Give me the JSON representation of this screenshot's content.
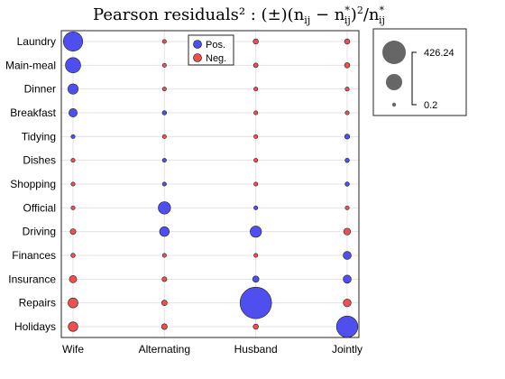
{
  "chart_data": {
    "type": "scatter",
    "title": "Pearson residuals² : (±)(n",
    "title_sub1": "ij",
    "title_mid": " − n",
    "title_sup2": "*",
    "title_sub2": "ij",
    "title_mid2": ")",
    "title_sup3": "2",
    "title_mid3": "/n",
    "title_sup4": "*",
    "title_sub4": "ij",
    "categories_x": [
      "Wife",
      "Alternating",
      "Husband",
      "Jointly"
    ],
    "categories_y": [
      "Laundry",
      "Main-meal",
      "Dinner",
      "Breakfast",
      "Tidying",
      "Dishes",
      "Shopping",
      "Official",
      "Driving",
      "Finances",
      "Insurance",
      "Repairs",
      "Holidays"
    ],
    "legend": {
      "pos_label": "Pos.",
      "neg_label": "Neg.",
      "placement": "top-center"
    },
    "size_legend": {
      "max_label": "426.24",
      "min_label": "0.2",
      "max_value": 426.24,
      "min_value": 0.2
    },
    "colors": {
      "pos": "#4f4ff0",
      "neg": "#f04f4f",
      "size_legend": "#666666"
    },
    "grid": true,
    "points": [
      {
        "y": "Laundry",
        "x": "Wife",
        "value": 160,
        "sign": "pos"
      },
      {
        "y": "Laundry",
        "x": "Alternating",
        "value": 2,
        "sign": "neg"
      },
      {
        "y": "Laundry",
        "x": "Husband",
        "value": 12,
        "sign": "neg"
      },
      {
        "y": "Laundry",
        "x": "Jointly",
        "value": 12,
        "sign": "neg"
      },
      {
        "y": "Main-meal",
        "x": "Wife",
        "value": 100,
        "sign": "pos"
      },
      {
        "y": "Main-meal",
        "x": "Alternating",
        "value": 1.5,
        "sign": "neg"
      },
      {
        "y": "Main-meal",
        "x": "Husband",
        "value": 9,
        "sign": "neg"
      },
      {
        "y": "Main-meal",
        "x": "Jointly",
        "value": 12,
        "sign": "neg"
      },
      {
        "y": "Dinner",
        "x": "Wife",
        "value": 45,
        "sign": "pos"
      },
      {
        "y": "Dinner",
        "x": "Alternating",
        "value": 1.5,
        "sign": "neg"
      },
      {
        "y": "Dinner",
        "x": "Husband",
        "value": 4,
        "sign": "neg"
      },
      {
        "y": "Dinner",
        "x": "Jointly",
        "value": 7,
        "sign": "neg"
      },
      {
        "y": "Breakfast",
        "x": "Wife",
        "value": 30,
        "sign": "pos"
      },
      {
        "y": "Breakfast",
        "x": "Alternating",
        "value": 8,
        "sign": "pos"
      },
      {
        "y": "Breakfast",
        "x": "Husband",
        "value": 4,
        "sign": "neg"
      },
      {
        "y": "Breakfast",
        "x": "Jointly",
        "value": 6,
        "sign": "neg"
      },
      {
        "y": "Tidying",
        "x": "Wife",
        "value": 3.5,
        "sign": "pos"
      },
      {
        "y": "Tidying",
        "x": "Alternating",
        "value": 1,
        "sign": "neg"
      },
      {
        "y": "Tidying",
        "x": "Husband",
        "value": 4,
        "sign": "neg"
      },
      {
        "y": "Tidying",
        "x": "Jointly",
        "value": 11,
        "sign": "pos"
      },
      {
        "y": "Dishes",
        "x": "Wife",
        "value": 2.5,
        "sign": "neg"
      },
      {
        "y": "Dishes",
        "x": "Alternating",
        "value": 4,
        "sign": "pos"
      },
      {
        "y": "Dishes",
        "x": "Husband",
        "value": 4,
        "sign": "neg"
      },
      {
        "y": "Dishes",
        "x": "Jointly",
        "value": 8,
        "sign": "pos"
      },
      {
        "y": "Shopping",
        "x": "Wife",
        "value": 2.5,
        "sign": "neg"
      },
      {
        "y": "Shopping",
        "x": "Alternating",
        "value": 3,
        "sign": "pos"
      },
      {
        "y": "Shopping",
        "x": "Husband",
        "value": 4,
        "sign": "neg"
      },
      {
        "y": "Shopping",
        "x": "Jointly",
        "value": 8,
        "sign": "pos"
      },
      {
        "y": "Official",
        "x": "Wife",
        "value": 6,
        "sign": "neg"
      },
      {
        "y": "Official",
        "x": "Alternating",
        "value": 65,
        "sign": "pos"
      },
      {
        "y": "Official",
        "x": "Husband",
        "value": 4,
        "sign": "pos"
      },
      {
        "y": "Official",
        "x": "Jointly",
        "value": 4,
        "sign": "neg"
      },
      {
        "y": "Driving",
        "x": "Wife",
        "value": 14,
        "sign": "neg"
      },
      {
        "y": "Driving",
        "x": "Alternating",
        "value": 40,
        "sign": "pos"
      },
      {
        "y": "Driving",
        "x": "Husband",
        "value": 55,
        "sign": "pos"
      },
      {
        "y": "Driving",
        "x": "Jointly",
        "value": 20,
        "sign": "neg"
      },
      {
        "y": "Finances",
        "x": "Wife",
        "value": 8,
        "sign": "neg"
      },
      {
        "y": "Finances",
        "x": "Alternating",
        "value": 2,
        "sign": "neg"
      },
      {
        "y": "Finances",
        "x": "Husband",
        "value": 4,
        "sign": "neg"
      },
      {
        "y": "Finances",
        "x": "Jointly",
        "value": 28,
        "sign": "pos"
      },
      {
        "y": "Insurance",
        "x": "Wife",
        "value": 23,
        "sign": "neg"
      },
      {
        "y": "Insurance",
        "x": "Alternating",
        "value": 10,
        "sign": "neg"
      },
      {
        "y": "Insurance",
        "x": "Husband",
        "value": 17,
        "sign": "pos"
      },
      {
        "y": "Insurance",
        "x": "Jointly",
        "value": 28,
        "sign": "pos"
      },
      {
        "y": "Repairs",
        "x": "Wife",
        "value": 42,
        "sign": "neg"
      },
      {
        "y": "Repairs",
        "x": "Alternating",
        "value": 13,
        "sign": "neg"
      },
      {
        "y": "Repairs",
        "x": "Husband",
        "value": 426.24,
        "sign": "pos"
      },
      {
        "y": "Repairs",
        "x": "Jointly",
        "value": 26,
        "sign": "neg"
      },
      {
        "y": "Holidays",
        "x": "Wife",
        "value": 40,
        "sign": "neg"
      },
      {
        "y": "Holidays",
        "x": "Alternating",
        "value": 14,
        "sign": "neg"
      },
      {
        "y": "Holidays",
        "x": "Husband",
        "value": 12,
        "sign": "neg"
      },
      {
        "y": "Holidays",
        "x": "Jointly",
        "value": 195,
        "sign": "pos"
      }
    ]
  }
}
